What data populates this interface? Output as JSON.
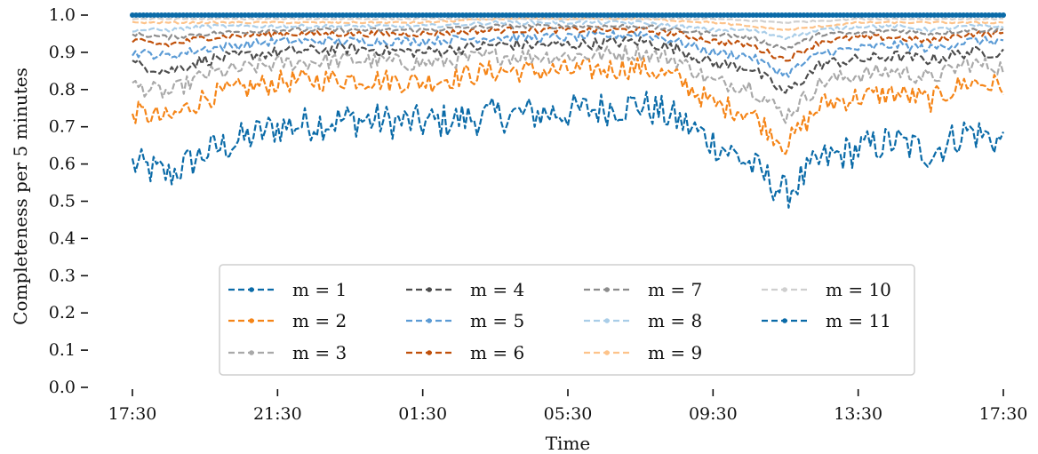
{
  "chart_data": {
    "type": "line",
    "xlabel": "Time",
    "ylabel": "Completeness per 5 minutes",
    "ylim": [
      0.0,
      1.0
    ],
    "xlim": [
      "17:30",
      "17:30 (+1 day)"
    ],
    "x_tick_labels": [
      "17:30",
      "21:30",
      "01:30",
      "05:30",
      "09:30",
      "13:30",
      "17:30"
    ],
    "y_tick_labels": [
      "0.0",
      "0.1",
      "0.2",
      "0.3",
      "0.4",
      "0.5",
      "0.6",
      "0.7",
      "0.8",
      "0.9",
      "1.0"
    ],
    "grid": false,
    "legend": {
      "placement": "lower-center",
      "columns": 4
    },
    "series": [
      {
        "name": "m = 1",
        "color": "#0b6ba8",
        "style": "dashed",
        "x_hours": [
          0,
          1,
          2,
          4,
          6,
          8,
          10,
          12,
          14,
          15,
          16,
          17,
          18,
          19,
          20,
          21,
          22,
          23,
          24
        ],
        "values": [
          0.6,
          0.57,
          0.63,
          0.7,
          0.72,
          0.71,
          0.73,
          0.74,
          0.76,
          0.72,
          0.66,
          0.6,
          0.52,
          0.61,
          0.64,
          0.66,
          0.63,
          0.69,
          0.66
        ]
      },
      {
        "name": "m = 2",
        "color": "#f58518",
        "style": "dashed",
        "x_hours": [
          0,
          1,
          2,
          4,
          6,
          8,
          10,
          12,
          14,
          15,
          16,
          17,
          18,
          19,
          20,
          21,
          22,
          23,
          24
        ],
        "values": [
          0.74,
          0.72,
          0.78,
          0.82,
          0.83,
          0.82,
          0.85,
          0.85,
          0.86,
          0.83,
          0.76,
          0.74,
          0.65,
          0.76,
          0.78,
          0.79,
          0.77,
          0.82,
          0.81
        ]
      },
      {
        "name": "m = 3",
        "color": "#a9a9a9",
        "style": "dashed",
        "x_hours": [
          0,
          1,
          2,
          4,
          6,
          8,
          10,
          12,
          14,
          15,
          16,
          17,
          18,
          19,
          20,
          21,
          22,
          23,
          24
        ],
        "values": [
          0.81,
          0.79,
          0.84,
          0.87,
          0.88,
          0.87,
          0.89,
          0.89,
          0.9,
          0.88,
          0.82,
          0.81,
          0.73,
          0.82,
          0.84,
          0.85,
          0.83,
          0.87,
          0.86
        ]
      },
      {
        "name": "m = 4",
        "color": "#4d4d4d",
        "style": "dashed",
        "x_hours": [
          0,
          1,
          2,
          4,
          6,
          8,
          10,
          12,
          14,
          15,
          16,
          17,
          18,
          19,
          20,
          21,
          22,
          23,
          24
        ],
        "values": [
          0.87,
          0.85,
          0.88,
          0.9,
          0.91,
          0.9,
          0.92,
          0.92,
          0.93,
          0.91,
          0.87,
          0.86,
          0.79,
          0.87,
          0.88,
          0.89,
          0.88,
          0.9,
          0.9
        ]
      },
      {
        "name": "m = 5",
        "color": "#5b9bd5",
        "style": "dashed",
        "x_hours": [
          0,
          1,
          2,
          4,
          6,
          8,
          10,
          12,
          14,
          15,
          16,
          17,
          18,
          19,
          20,
          21,
          22,
          23,
          24
        ],
        "values": [
          0.9,
          0.89,
          0.91,
          0.93,
          0.93,
          0.93,
          0.94,
          0.94,
          0.95,
          0.93,
          0.9,
          0.89,
          0.84,
          0.9,
          0.91,
          0.92,
          0.91,
          0.93,
          0.93
        ]
      },
      {
        "name": "m = 6",
        "color": "#c0500a",
        "style": "dashed",
        "x_hours": [
          0,
          1,
          2,
          4,
          6,
          8,
          10,
          12,
          14,
          15,
          16,
          17,
          18,
          19,
          20,
          21,
          22,
          23,
          24
        ],
        "values": [
          0.93,
          0.92,
          0.94,
          0.95,
          0.95,
          0.95,
          0.96,
          0.96,
          0.96,
          0.95,
          0.93,
          0.92,
          0.88,
          0.93,
          0.94,
          0.94,
          0.93,
          0.95,
          0.95
        ]
      },
      {
        "name": "m = 7",
        "color": "#8c8c8c",
        "style": "dashed",
        "x_hours": [
          0,
          1,
          2,
          4,
          6,
          8,
          10,
          12,
          14,
          15,
          16,
          17,
          18,
          19,
          20,
          21,
          22,
          23,
          24
        ],
        "values": [
          0.95,
          0.94,
          0.95,
          0.96,
          0.96,
          0.96,
          0.97,
          0.97,
          0.97,
          0.96,
          0.95,
          0.94,
          0.91,
          0.95,
          0.95,
          0.96,
          0.95,
          0.96,
          0.96
        ]
      },
      {
        "name": "m = 8",
        "color": "#a9cde8",
        "style": "dashed",
        "x_hours": [
          0,
          1,
          2,
          4,
          6,
          8,
          10,
          12,
          14,
          15,
          16,
          17,
          18,
          19,
          20,
          21,
          22,
          23,
          24
        ],
        "values": [
          0.96,
          0.96,
          0.97,
          0.97,
          0.97,
          0.97,
          0.98,
          0.98,
          0.98,
          0.97,
          0.96,
          0.96,
          0.94,
          0.96,
          0.97,
          0.97,
          0.96,
          0.97,
          0.97
        ]
      },
      {
        "name": "m = 9",
        "color": "#fdc38a",
        "style": "dashed",
        "x_hours": [
          0,
          2,
          4,
          6,
          8,
          10,
          12,
          14,
          16,
          18,
          20,
          22,
          24
        ],
        "values": [
          0.98,
          0.98,
          0.98,
          0.98,
          0.98,
          0.99,
          0.99,
          0.99,
          0.98,
          0.96,
          0.98,
          0.98,
          0.98
        ]
      },
      {
        "name": "m = 10",
        "color": "#cfcfcf",
        "style": "dashed",
        "x_hours": [
          0,
          2,
          4,
          6,
          8,
          10,
          12,
          14,
          16,
          18,
          20,
          22,
          24
        ],
        "values": [
          0.99,
          0.99,
          0.99,
          0.99,
          0.99,
          0.99,
          0.99,
          0.99,
          0.99,
          0.98,
          0.99,
          0.99,
          0.99
        ]
      },
      {
        "name": "m = 11",
        "color": "#0b6ba8",
        "style": "dashed-dots",
        "x_hours": [
          0,
          24
        ],
        "values": [
          1.0,
          1.0
        ]
      }
    ]
  }
}
